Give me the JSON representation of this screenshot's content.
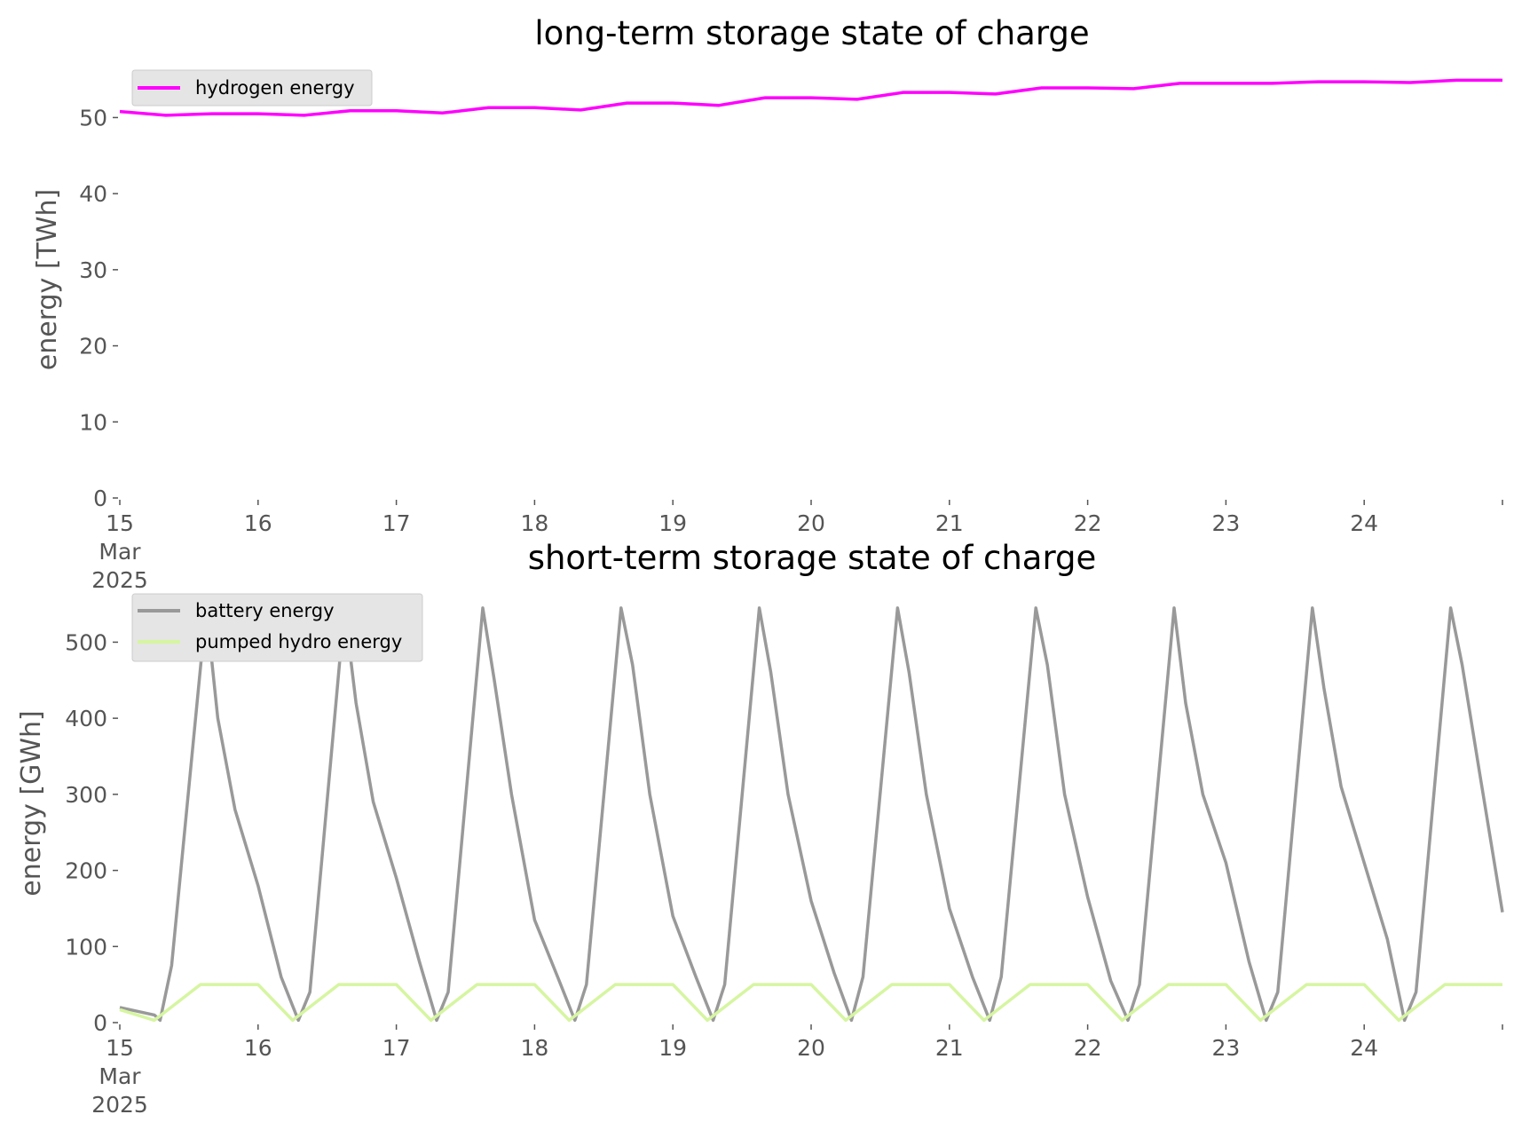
{
  "chart_data": [
    {
      "type": "line",
      "title": "long-term storage state of charge",
      "ylabel": "energy [TWh]",
      "xlabel": "",
      "xlim": [
        "2025-03-15",
        "2025-03-25"
      ],
      "ylim": [
        0,
        56
      ],
      "yticks": [
        "0",
        "10",
        "20",
        "30",
        "40",
        "50"
      ],
      "xticks": [
        "15\nMar\n2025",
        "16",
        "17",
        "18",
        "19",
        "20",
        "21",
        "22",
        "23",
        "24"
      ],
      "grid": false,
      "legend": "top-left",
      "series": [
        {
          "name": "hydrogen energy",
          "color": "#ff00ff",
          "x": [
            "2025-03-15",
            "2025-03-15T08:00",
            "2025-03-15T16:00",
            "2025-03-16",
            "2025-03-16T08:00",
            "2025-03-16T16:00",
            "2025-03-17",
            "2025-03-17T08:00",
            "2025-03-17T16:00",
            "2025-03-18",
            "2025-03-18T08:00",
            "2025-03-18T16:00",
            "2025-03-19",
            "2025-03-19T08:00",
            "2025-03-19T16:00",
            "2025-03-20",
            "2025-03-20T08:00",
            "2025-03-20T16:00",
            "2025-03-21",
            "2025-03-21T08:00",
            "2025-03-21T16:00",
            "2025-03-22",
            "2025-03-22T08:00",
            "2025-03-22T16:00",
            "2025-03-23",
            "2025-03-23T08:00",
            "2025-03-23T16:00",
            "2025-03-24",
            "2025-03-24T08:00",
            "2025-03-24T16:00",
            "2025-03-25"
          ],
          "values": [
            50.8,
            50.3,
            50.5,
            50.5,
            50.3,
            50.9,
            50.9,
            50.6,
            51.3,
            51.3,
            51.0,
            51.9,
            51.9,
            51.6,
            52.6,
            52.6,
            52.4,
            53.3,
            53.3,
            53.1,
            53.9,
            53.9,
            53.8,
            54.5,
            54.5,
            54.5,
            54.7,
            54.7,
            54.6,
            54.9,
            54.9
          ]
        }
      ]
    },
    {
      "type": "line",
      "title": "short-term storage state of charge",
      "ylabel": "energy [GWh]",
      "xlabel": "",
      "xlim": [
        "2025-03-15",
        "2025-03-25"
      ],
      "ylim": [
        0,
        560
      ],
      "yticks": [
        "0",
        "100",
        "200",
        "300",
        "400",
        "500"
      ],
      "xticks": [
        "15\nMar\n2025",
        "16",
        "17",
        "18",
        "19",
        "20",
        "21",
        "22",
        "23",
        "24"
      ],
      "grid": false,
      "legend": "top-left",
      "series": [
        {
          "name": "battery energy",
          "color": "#999999",
          "x": [
            "2025-03-15",
            "2025-03-15T06:00",
            "2025-03-15T07:00",
            "2025-03-15T09:00",
            "2025-03-15T15:00",
            "2025-03-15T17:00",
            "2025-03-15T20:00",
            "2025-03-16",
            "2025-03-16T04:00",
            "2025-03-16T07:00",
            "2025-03-16T09:00",
            "2025-03-16T15:00",
            "2025-03-16T17:00",
            "2025-03-16T20:00",
            "2025-03-17",
            "2025-03-17T04:00",
            "2025-03-17T07:00",
            "2025-03-17T09:00",
            "2025-03-17T15:00",
            "2025-03-17T17:00",
            "2025-03-17T20:00",
            "2025-03-18",
            "2025-03-18T04:00",
            "2025-03-18T07:00",
            "2025-03-18T09:00",
            "2025-03-18T15:00",
            "2025-03-18T17:00",
            "2025-03-18T20:00",
            "2025-03-19",
            "2025-03-19T04:00",
            "2025-03-19T07:00",
            "2025-03-19T09:00",
            "2025-03-19T15:00",
            "2025-03-19T17:00",
            "2025-03-19T20:00",
            "2025-03-20",
            "2025-03-20T04:00",
            "2025-03-20T07:00",
            "2025-03-20T09:00",
            "2025-03-20T15:00",
            "2025-03-20T17:00",
            "2025-03-20T20:00",
            "2025-03-21",
            "2025-03-21T04:00",
            "2025-03-21T07:00",
            "2025-03-21T09:00",
            "2025-03-21T15:00",
            "2025-03-21T17:00",
            "2025-03-21T20:00",
            "2025-03-22",
            "2025-03-22T04:00",
            "2025-03-22T07:00",
            "2025-03-22T09:00",
            "2025-03-22T15:00",
            "2025-03-22T17:00",
            "2025-03-22T20:00",
            "2025-03-23",
            "2025-03-23T04:00",
            "2025-03-23T07:00",
            "2025-03-23T09:00",
            "2025-03-23T15:00",
            "2025-03-23T17:00",
            "2025-03-23T20:00",
            "2025-03-24",
            "2025-03-24T04:00",
            "2025-03-24T07:00",
            "2025-03-24T09:00",
            "2025-03-24T15:00",
            "2025-03-24T17:00",
            "2025-03-24T20:00",
            "2025-03-25"
          ],
          "values": [
            20,
            10,
            3,
            75,
            545,
            400,
            280,
            180,
            60,
            3,
            40,
            545,
            420,
            290,
            190,
            80,
            3,
            40,
            545,
            450,
            300,
            135,
            60,
            3,
            50,
            545,
            470,
            300,
            140,
            60,
            3,
            50,
            545,
            460,
            300,
            160,
            65,
            3,
            60,
            545,
            460,
            300,
            150,
            60,
            3,
            60,
            545,
            470,
            300,
            165,
            55,
            3,
            50,
            545,
            420,
            300,
            210,
            80,
            3,
            40,
            545,
            440,
            310,
            210,
            110,
            3,
            40,
            545,
            470,
            330,
            145
          ]
        },
        {
          "name": "pumped hydro energy",
          "color": "#d6f5a1",
          "x": [
            "2025-03-15",
            "2025-03-15T06:00",
            "2025-03-15T14:00",
            "2025-03-15T20:00",
            "2025-03-16",
            "2025-03-16T06:00",
            "2025-03-16T14:00",
            "2025-03-16T20:00",
            "2025-03-17",
            "2025-03-17T06:00",
            "2025-03-17T14:00",
            "2025-03-17T20:00",
            "2025-03-18",
            "2025-03-18T06:00",
            "2025-03-18T14:00",
            "2025-03-18T20:00",
            "2025-03-19",
            "2025-03-19T06:00",
            "2025-03-19T14:00",
            "2025-03-19T20:00",
            "2025-03-20",
            "2025-03-20T06:00",
            "2025-03-20T14:00",
            "2025-03-20T20:00",
            "2025-03-21",
            "2025-03-21T06:00",
            "2025-03-21T14:00",
            "2025-03-21T20:00",
            "2025-03-22",
            "2025-03-22T06:00",
            "2025-03-22T14:00",
            "2025-03-22T20:00",
            "2025-03-23",
            "2025-03-23T06:00",
            "2025-03-23T14:00",
            "2025-03-23T20:00",
            "2025-03-24",
            "2025-03-24T06:00",
            "2025-03-24T14:00",
            "2025-03-24T20:00",
            "2025-03-25"
          ],
          "values": [
            17,
            3,
            50,
            50,
            50,
            3,
            50,
            50,
            50,
            3,
            50,
            50,
            50,
            3,
            50,
            50,
            50,
            3,
            50,
            50,
            50,
            3,
            50,
            50,
            50,
            3,
            50,
            50,
            50,
            3,
            50,
            50,
            50,
            3,
            50,
            50,
            50,
            3,
            50,
            50,
            50
          ]
        }
      ]
    }
  ]
}
